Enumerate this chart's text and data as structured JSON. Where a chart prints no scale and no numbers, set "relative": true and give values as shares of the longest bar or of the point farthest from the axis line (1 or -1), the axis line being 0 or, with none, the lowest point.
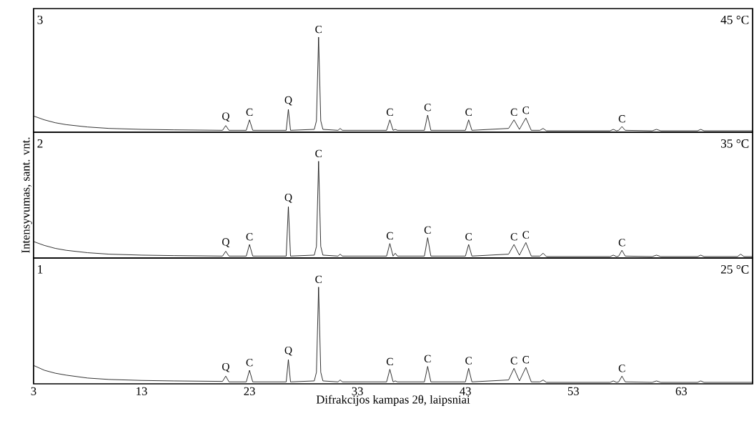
{
  "chart_data": [
    {
      "type": "line",
      "relative": true,
      "tick_labels": false,
      "xlim": [
        3,
        69.6
      ],
      "x": [
        3,
        4,
        5,
        6,
        8,
        10,
        13,
        16,
        20.5,
        20.8,
        21.1,
        22.7,
        23.0,
        23.3,
        26.4,
        26.6,
        26.8,
        29.0,
        29.2,
        29.4,
        29.6,
        29.8,
        31.2,
        31.4,
        31.6,
        35.7,
        36.0,
        36.3,
        36.5,
        36.7,
        39.2,
        39.5,
        39.8,
        43.0,
        43.3,
        43.6,
        47.0,
        47.5,
        48.0,
        48.6,
        49.1,
        49.9,
        50.2,
        50.5,
        53,
        56.4,
        56.7,
        57.0,
        57.2,
        57.5,
        57.8,
        60.3,
        60.7,
        61.1,
        64.5,
        64.8,
        65.1,
        68.2,
        68.5,
        68.8,
        69.6
      ],
      "series": [
        {
          "color": "#000000",
          "values": [
            0.17,
            0.13,
            0.1,
            0.08,
            0.055,
            0.04,
            0.03,
            0.025,
            0.02,
            0.07,
            0.02,
            0.02,
            0.13,
            0.02,
            0.02,
            0.24,
            0.02,
            0.03,
            0.12,
            1,
            0.12,
            0.03,
            0.02,
            0.04,
            0.02,
            0.02,
            0.13,
            0.02,
            0.03,
            0.02,
            0.02,
            0.18,
            0.02,
            0.02,
            0.13,
            0.02,
            0.04,
            0.13,
            0.03,
            0.15,
            0.02,
            0.02,
            0.04,
            0.015,
            0.015,
            0.015,
            0.03,
            0.015,
            0.02,
            0.06,
            0.02,
            0.015,
            0.03,
            0.015,
            0.015,
            0.03,
            0.015,
            0.015,
            0.015,
            0.015,
            0.015
          ]
        }
      ],
      "annotations": [
        "3",
        "45 °C",
        {
          "text": "Q",
          "x": 20.8,
          "y": 0.07
        },
        {
          "text": "C",
          "x": 23.0,
          "y": 0.13
        },
        {
          "text": "Q",
          "x": 26.6,
          "y": 0.24
        },
        {
          "text": "C",
          "x": 29.4,
          "y": 1
        },
        {
          "text": "C",
          "x": 36.0,
          "y": 0.13
        },
        {
          "text": "C",
          "x": 39.5,
          "y": 0.18
        },
        {
          "text": "C",
          "x": 43.3,
          "y": 0.13
        },
        {
          "text": "C",
          "x": 47.5,
          "y": 0.13
        },
        {
          "text": "C",
          "x": 48.6,
          "y": 0.15
        },
        {
          "text": "C",
          "x": 57.5,
          "y": 0.06
        }
      ]
    },
    {
      "type": "line",
      "relative": true,
      "tick_labels": false,
      "xlim": [
        3,
        69.6
      ],
      "ylabel": "Intensyvumas,  sant. vnt.",
      "x": [
        3,
        4,
        5,
        6,
        8,
        10,
        13,
        16,
        20.5,
        20.8,
        21.1,
        22.7,
        23.0,
        23.3,
        26.4,
        26.6,
        26.8,
        29.0,
        29.2,
        29.4,
        29.6,
        29.8,
        31.2,
        31.4,
        31.6,
        35.7,
        36.0,
        36.3,
        36.5,
        36.7,
        39.2,
        39.5,
        39.8,
        43.0,
        43.3,
        43.6,
        47.0,
        47.5,
        48.0,
        48.6,
        49.1,
        49.9,
        50.2,
        50.5,
        53,
        56.4,
        56.7,
        57.0,
        57.2,
        57.5,
        57.8,
        60.3,
        60.7,
        61.1,
        64.5,
        64.8,
        65.1,
        68.2,
        68.5,
        68.8,
        69.6
      ],
      "series": [
        {
          "color": "#000000",
          "values": [
            0.17,
            0.13,
            0.1,
            0.08,
            0.055,
            0.04,
            0.03,
            0.025,
            0.02,
            0.07,
            0.02,
            0.02,
            0.14,
            0.02,
            0.02,
            0.53,
            0.02,
            0.03,
            0.12,
            1,
            0.12,
            0.03,
            0.02,
            0.04,
            0.02,
            0.02,
            0.15,
            0.02,
            0.05,
            0.02,
            0.02,
            0.21,
            0.02,
            0.02,
            0.14,
            0.02,
            0.04,
            0.14,
            0.03,
            0.16,
            0.02,
            0.02,
            0.05,
            0.015,
            0.015,
            0.015,
            0.03,
            0.015,
            0.02,
            0.08,
            0.02,
            0.015,
            0.03,
            0.015,
            0.015,
            0.03,
            0.015,
            0.015,
            0.04,
            0.015,
            0.015
          ]
        }
      ],
      "annotations": [
        "2",
        "35 °C",
        {
          "text": "Q",
          "x": 20.8,
          "y": 0.07
        },
        {
          "text": "C",
          "x": 23.0,
          "y": 0.14
        },
        {
          "text": "Q",
          "x": 26.6,
          "y": 0.53
        },
        {
          "text": "C",
          "x": 29.4,
          "y": 1
        },
        {
          "text": "C",
          "x": 36.0,
          "y": 0.15
        },
        {
          "text": "C",
          "x": 39.5,
          "y": 0.21
        },
        {
          "text": "C",
          "x": 43.3,
          "y": 0.14
        },
        {
          "text": "C",
          "x": 47.5,
          "y": 0.14
        },
        {
          "text": "C",
          "x": 48.6,
          "y": 0.16
        },
        {
          "text": "C",
          "x": 57.5,
          "y": 0.08
        }
      ]
    },
    {
      "type": "line",
      "relative": true,
      "tick_labels": "x",
      "xlim": [
        3,
        69.6
      ],
      "xticks": [
        3,
        13,
        23,
        33,
        43,
        53,
        63
      ],
      "xlabel": "Difrakcijos kampas 2θ, laipsniai",
      "x": [
        3,
        4,
        5,
        6,
        8,
        10,
        13,
        16,
        20.5,
        20.8,
        21.1,
        22.7,
        23.0,
        23.3,
        26.4,
        26.6,
        26.8,
        29.0,
        29.2,
        29.4,
        29.6,
        29.8,
        31.2,
        31.4,
        31.6,
        35.7,
        36.0,
        36.3,
        36.5,
        36.7,
        39.2,
        39.5,
        39.8,
        43.0,
        43.3,
        43.6,
        47.0,
        47.5,
        48.0,
        48.6,
        49.1,
        49.9,
        50.2,
        50.5,
        53,
        56.4,
        56.7,
        57.0,
        57.2,
        57.5,
        57.8,
        60.3,
        60.7,
        61.1,
        64.5,
        64.8,
        65.1,
        68.2,
        68.5,
        68.8,
        69.6
      ],
      "series": [
        {
          "color": "#000000",
          "values": [
            0.19,
            0.14,
            0.11,
            0.09,
            0.06,
            0.045,
            0.035,
            0.03,
            0.025,
            0.08,
            0.02,
            0.02,
            0.14,
            0.02,
            0.02,
            0.25,
            0.02,
            0.03,
            0.12,
            1,
            0.12,
            0.03,
            0.02,
            0.04,
            0.02,
            0.02,
            0.15,
            0.02,
            0.03,
            0.02,
            0.02,
            0.18,
            0.02,
            0.02,
            0.16,
            0.02,
            0.04,
            0.16,
            0.03,
            0.17,
            0.02,
            0.02,
            0.04,
            0.015,
            0.015,
            0.015,
            0.03,
            0.015,
            0.02,
            0.08,
            0.02,
            0.015,
            0.03,
            0.015,
            0.015,
            0.03,
            0.015,
            0.015,
            0.015,
            0.015,
            0.015
          ]
        }
      ],
      "annotations": [
        "1",
        "25 °C",
        {
          "text": "Q",
          "x": 20.8,
          "y": 0.08
        },
        {
          "text": "C",
          "x": 23.0,
          "y": 0.14
        },
        {
          "text": "Q",
          "x": 26.6,
          "y": 0.25
        },
        {
          "text": "C",
          "x": 29.4,
          "y": 1
        },
        {
          "text": "C",
          "x": 36.0,
          "y": 0.15
        },
        {
          "text": "C",
          "x": 39.5,
          "y": 0.18
        },
        {
          "text": "C",
          "x": 43.3,
          "y": 0.16
        },
        {
          "text": "C",
          "x": 47.5,
          "y": 0.16
        },
        {
          "text": "C",
          "x": 48.6,
          "y": 0.17
        },
        {
          "text": "C",
          "x": 57.5,
          "y": 0.08
        }
      ]
    }
  ]
}
